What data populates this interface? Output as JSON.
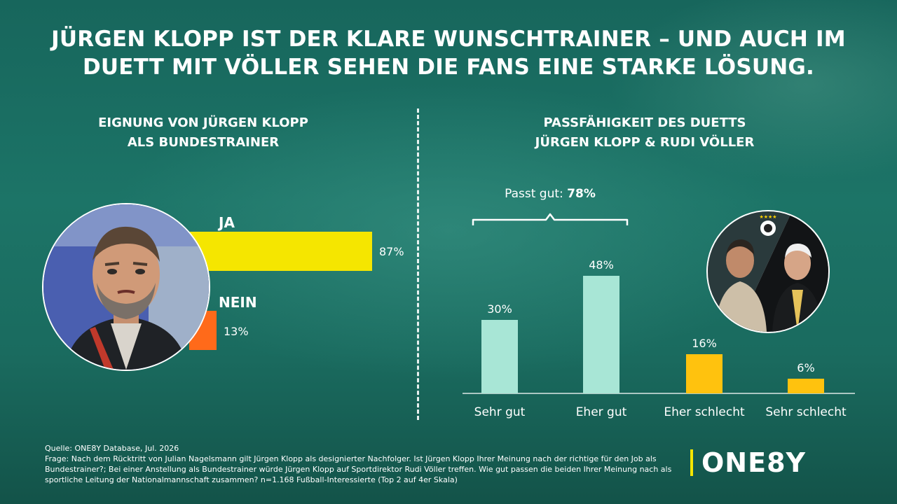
{
  "title": "JÜRGEN KLOPP IST DER KLARE WUNSCHTRAINER – UND AUCH IM DUETT MIT VÖLLER SEHEN DIE FANS EINE STARKE LÖSUNG.",
  "left_title_line1": "EIGNUNG VON JÜRGEN KLOPP",
  "left_title_line2": "ALS BUNDESTRAINER",
  "right_title_line1": "PASSFÄHIGKEIT DES DUETTS",
  "right_title_line2": "JÜRGEN KLOPP & RUDI VÖLLER",
  "colors": {
    "yellow": "#f5e600",
    "orange": "#ff6a1a",
    "mint": "#a8e6d6",
    "gold": "#ffc20e",
    "teal": "#1a6b5f"
  },
  "chart_data": [
    {
      "type": "bar",
      "orientation": "horizontal",
      "categories": [
        "JA",
        "NEIN"
      ],
      "values": [
        87,
        13
      ],
      "value_labels": [
        "87%",
        "13%"
      ],
      "xlim": [
        0,
        100
      ]
    },
    {
      "type": "bar",
      "categories": [
        "Sehr gut",
        "Eher gut",
        "Eher schlecht",
        "Sehr schlecht"
      ],
      "values": [
        30,
        48,
        16,
        6
      ],
      "value_labels": [
        "30%",
        "48%",
        "16%",
        "6%"
      ],
      "ylim": [
        0,
        60
      ],
      "annotation": {
        "label": "Passt gut:",
        "value": "78%",
        "spans": [
          "Sehr gut",
          "Eher gut"
        ]
      }
    }
  ],
  "footer": {
    "source": "Quelle: ONE8Y Database, Jul. 2026",
    "question": "Frage: Nach dem Rücktritt von Julian Nagelsmann gilt Jürgen Klopp als designierter Nachfolger. Ist Jürgen Klopp Ihrer Meinung nach der richtige für den Job als Bundestrainer?; Bei einer Anstellung als Bundestrainer würde Jürgen Klopp auf Sportdirektor Rudi Völler treffen. Wie gut passen die beiden Ihrer Meinung nach als sportliche Leitung der Nationalmannschaft zusammen? n=1.168 Fußball-Interessierte (Top 2 auf 4er Skala)"
  },
  "logo": "ONE8Y"
}
